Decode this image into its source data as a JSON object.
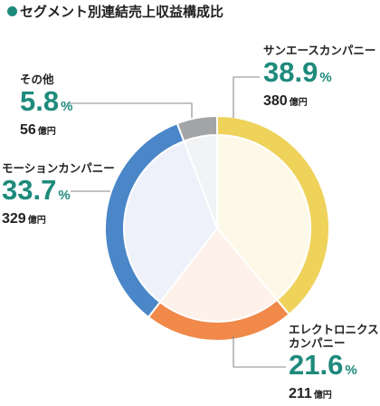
{
  "header": {
    "title": "セグメント別連結売上収益構成比"
  },
  "chart_data": {
    "type": "pie",
    "style": "donut",
    "title": "セグメント別連結売上収益構成比",
    "series": [
      {
        "name": "サンエースカンパニー",
        "percent_value": 38.9,
        "percent_label": "38.9",
        "amount": "380",
        "color": "#eed25a",
        "inner_color": "#fdf9e8"
      },
      {
        "name": "エレクトロニクス\nカンパニー",
        "percent_value": 21.6,
        "percent_label": "21.6",
        "amount": "211",
        "color": "#f0894a",
        "inner_color": "#fdf1ea"
      },
      {
        "name": "モーションカンパニー",
        "percent_value": 33.7,
        "percent_label": "33.7",
        "amount": "329",
        "color": "#4a86c8",
        "inner_color": "#eef0fa"
      },
      {
        "name": "その他",
        "percent_value": 5.8,
        "percent_label": "5.8",
        "amount": "56",
        "color": "#a3a4a6",
        "inner_color": "#f1f3f5"
      }
    ],
    "percent_unit": "%",
    "amount_unit": "億円"
  }
}
